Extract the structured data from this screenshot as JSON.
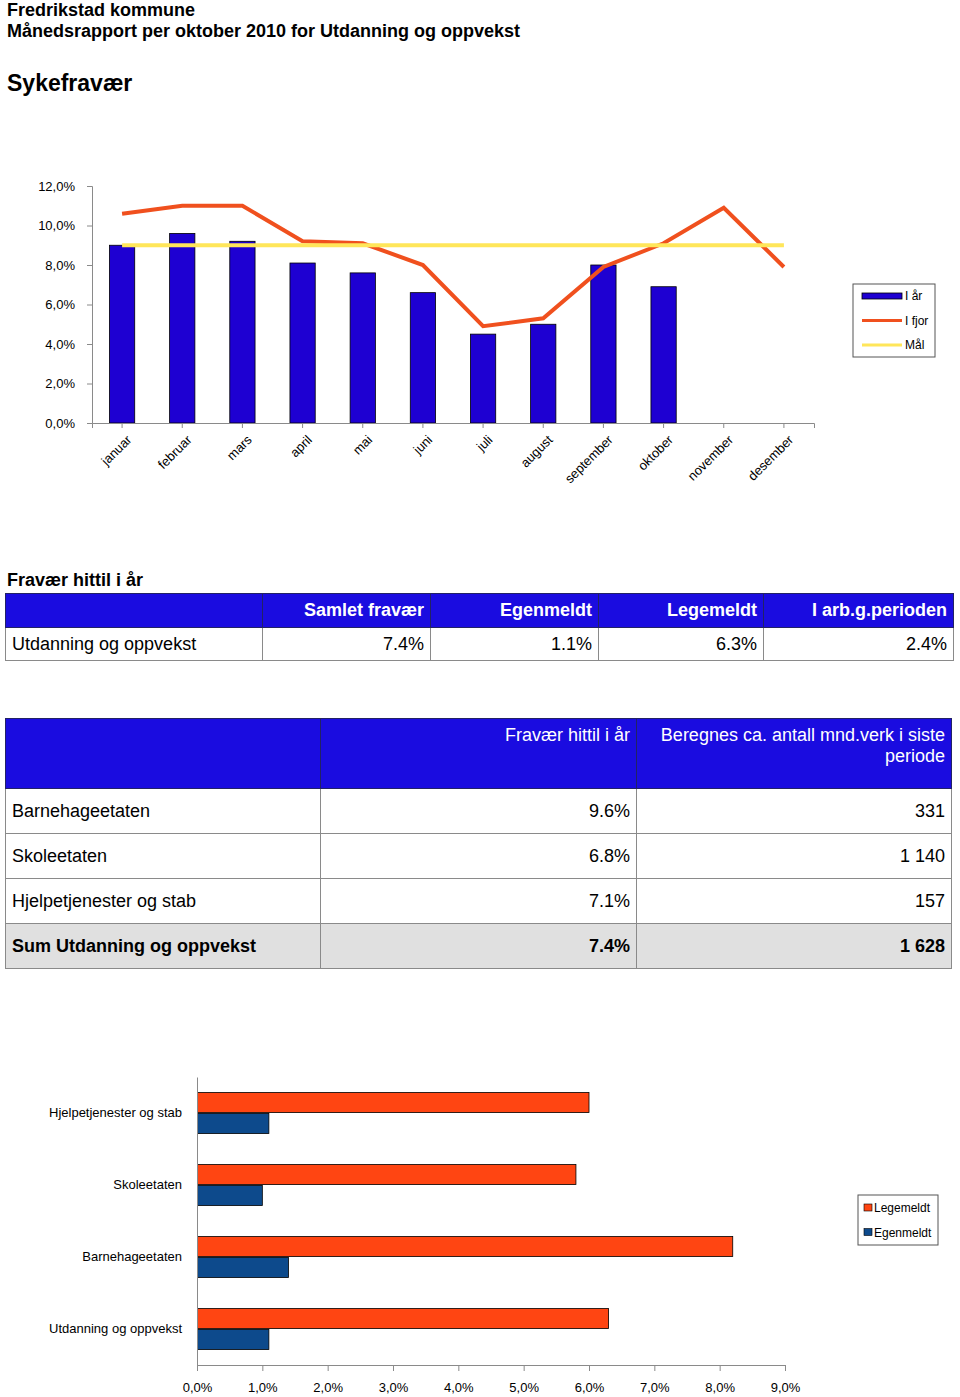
{
  "header": {
    "title": "Fredrikstad kommune",
    "subtitle": "Månedsrapport per oktober 2010 for Utdanning og oppvekst",
    "section": "Sykefravær"
  },
  "chart_data": [
    {
      "type": "bar",
      "categories": [
        "januar",
        "februar",
        "mars",
        "april",
        "mai",
        "juni",
        "juli",
        "august",
        "september",
        "oktober",
        "november",
        "desember"
      ],
      "series": [
        {
          "name": "I år",
          "type": "bar",
          "color": "#1e00d2",
          "values": [
            9.0,
            9.6,
            9.2,
            8.1,
            7.6,
            6.6,
            4.5,
            5.0,
            8.0,
            6.9,
            null,
            null
          ]
        },
        {
          "name": "I fjor",
          "type": "line",
          "color": "#f0501e",
          "values": [
            10.6,
            11.0,
            11.0,
            9.2,
            9.1,
            8.0,
            4.9,
            5.3,
            7.9,
            9.1,
            10.9,
            7.9
          ]
        },
        {
          "name": "Mål",
          "type": "line",
          "color": "#ffe65a",
          "values": [
            9.0,
            9.0,
            9.0,
            9.0,
            9.0,
            9.0,
            9.0,
            9.0,
            9.0,
            9.0,
            9.0,
            9.0
          ]
        }
      ],
      "ylim": [
        0,
        12
      ],
      "yticks": [
        {
          "value": 0,
          "label": "0,0%"
        },
        {
          "value": 2,
          "label": "2,0%"
        },
        {
          "value": 4,
          "label": "4,0%"
        },
        {
          "value": 6,
          "label": "6,0%"
        },
        {
          "value": 8,
          "label": "8,0%"
        },
        {
          "value": 10,
          "label": "10,0%"
        },
        {
          "value": 12,
          "label": "12,0%"
        }
      ],
      "grid": false,
      "legend": "right"
    },
    {
      "type": "bar",
      "orientation": "horizontal",
      "categories": [
        "Hjelpetjenester og stab",
        "Skoleetaten",
        "Barnehageetaten",
        "Utdanning og oppvekst"
      ],
      "series": [
        {
          "name": "Legemeldt",
          "color": "#ff4512",
          "values": [
            6.0,
            5.8,
            8.2,
            6.3
          ]
        },
        {
          "name": "Egenmeldt",
          "color": "#0d4a8c",
          "values": [
            1.1,
            1.0,
            1.4,
            1.1
          ]
        }
      ],
      "xlim": [
        0,
        9
      ],
      "xticks": [
        {
          "value": 0,
          "label": "0,0%"
        },
        {
          "value": 1,
          "label": "1,0%"
        },
        {
          "value": 2,
          "label": "2,0%"
        },
        {
          "value": 3,
          "label": "3,0%"
        },
        {
          "value": 4,
          "label": "4,0%"
        },
        {
          "value": 5,
          "label": "5,0%"
        },
        {
          "value": 6,
          "label": "6,0%"
        },
        {
          "value": 7,
          "label": "7,0%"
        },
        {
          "value": 8,
          "label": "8,0%"
        },
        {
          "value": 9,
          "label": "9,0%"
        }
      ],
      "grid": false,
      "legend": "right"
    }
  ],
  "tables": [
    {
      "title": "Fravær hittil i år",
      "columns": [
        "Samlet fravær",
        "Egenmeldt",
        "Legemeldt",
        "I arb.g.perioden"
      ],
      "rows": [
        [
          "Utdanning og oppvekst",
          "7.4%",
          "1.1%",
          "6.3%",
          "2.4%"
        ]
      ]
    },
    {
      "columns": [
        "Fravær hittil i år",
        "Beregnes ca. antall mnd.verk i siste periode"
      ],
      "rows": [
        [
          "Barnehageetaten",
          "9.6%",
          "331"
        ],
        [
          "Skoleetaten",
          "6.8%",
          "1 140"
        ],
        [
          "Hjelpetjenester og stab",
          "7.1%",
          "157"
        ],
        [
          "Sum Utdanning og oppvekst",
          "7.4%",
          "1 628"
        ]
      ]
    }
  ]
}
